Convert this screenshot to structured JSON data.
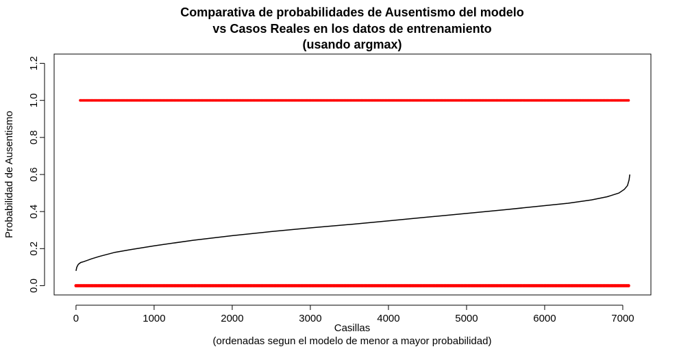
{
  "chart_data": {
    "type": "scatter",
    "title": [
      "Comparativa de probabilidades de Ausentismo del modelo",
      "vs Casos Reales en los datos de entrenamiento",
      "(usando argmax)"
    ],
    "xlabel": "Casillas",
    "xlabel_sub": "(ordenadas segun el modelo de menor a mayor probabilidad)",
    "ylabel": "Probabilidad de Ausentismo",
    "xlim": [
      -280,
      7360
    ],
    "ylim": [
      -0.05,
      1.25
    ],
    "xticks": [
      0,
      1000,
      2000,
      3000,
      4000,
      5000,
      6000,
      7000
    ],
    "xtick_labels": [
      "0",
      "1000",
      "2000",
      "3000",
      "4000",
      "5000",
      "6000",
      "7000"
    ],
    "yticks": [
      0.0,
      0.2,
      0.4,
      0.6,
      0.8,
      1.0,
      1.2
    ],
    "ytick_labels": [
      "0.0",
      "0.2",
      "0.4",
      "0.6",
      "0.8",
      "1.0",
      "1.2"
    ],
    "grid": false,
    "series": [
      {
        "kind": "line",
        "color": "#000000",
        "x": [
          0,
          10,
          30,
          60,
          100,
          200,
          300,
          500,
          700,
          1000,
          1500,
          2000,
          2500,
          3000,
          3500,
          4000,
          4500,
          5000,
          5500,
          6000,
          6300,
          6600,
          6800,
          6950,
          7020,
          7060,
          7080,
          7090
        ],
        "values": [
          0.08,
          0.1,
          0.115,
          0.125,
          0.13,
          0.145,
          0.158,
          0.18,
          0.195,
          0.215,
          0.245,
          0.27,
          0.292,
          0.312,
          0.33,
          0.35,
          0.37,
          0.39,
          0.41,
          0.432,
          0.445,
          0.463,
          0.48,
          0.5,
          0.52,
          0.54,
          0.57,
          0.6
        ]
      },
      {
        "kind": "points",
        "color": "#ff0000",
        "x_range": [
          0,
          7090
        ],
        "values_at": [
          0,
          1
        ],
        "y_one_starts_at": 40
      }
    ]
  }
}
